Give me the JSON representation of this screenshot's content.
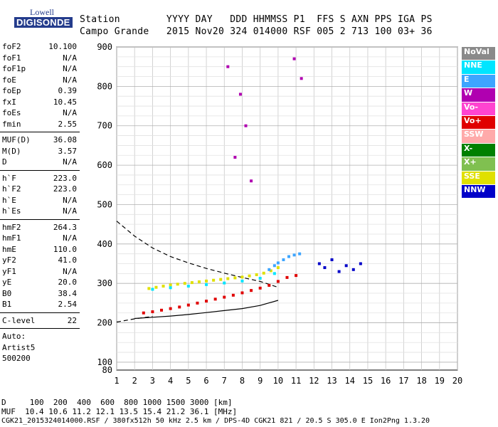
{
  "header": {
    "labels": "Station        YYYY DAY   DDD HHMMSS P1  FFS S AXN PPS IGA PS",
    "values": "Campo Grande   2015 Nov20 324 014000 RSF 005 2 713 100 03+ 36"
  },
  "logo": {
    "line1": "Lowell",
    "line2": "DIGISONDE"
  },
  "params": [
    {
      "k": "foF2",
      "v": "10.100"
    },
    {
      "k": "foF1",
      "v": "N/A"
    },
    {
      "k": "foF1p",
      "v": "N/A"
    },
    {
      "k": "foE",
      "v": "N/A"
    },
    {
      "k": "foEp",
      "v": "0.39"
    },
    {
      "k": "fxI",
      "v": "10.45"
    },
    {
      "k": "foEs",
      "v": "N/A"
    },
    {
      "k": "fmin",
      "v": "2.55"
    },
    {
      "k": "MUF(D)",
      "v": "36.08"
    },
    {
      "k": "M(D)",
      "v": "3.57"
    },
    {
      "k": "D",
      "v": "N/A"
    },
    {
      "k": "h`F",
      "v": "223.0"
    },
    {
      "k": "h`F2",
      "v": "223.0"
    },
    {
      "k": "h`E",
      "v": "N/A"
    },
    {
      "k": "h`Es",
      "v": "N/A"
    },
    {
      "k": "hmF2",
      "v": "264.3"
    },
    {
      "k": "hmF1",
      "v": "N/A"
    },
    {
      "k": "hmE",
      "v": "110.0"
    },
    {
      "k": "yF2",
      "v": "41.0"
    },
    {
      "k": "yF1",
      "v": "N/A"
    },
    {
      "k": "yE",
      "v": "20.0"
    },
    {
      "k": "B0",
      "v": "38.4"
    },
    {
      "k": "B1",
      "v": "2.54"
    },
    {
      "k": "C-level",
      "v": "22"
    }
  ],
  "auto": {
    "l1": "Auto:",
    "l2": "Artist5",
    "l3": "500200"
  },
  "legend": [
    {
      "label": "NoVal",
      "color": "#8a8a8a"
    },
    {
      "label": "NNE",
      "color": "#00e5ff"
    },
    {
      "label": "E",
      "color": "#3da5ff"
    },
    {
      "label": "W",
      "color": "#b000b0"
    },
    {
      "label": "Vo-",
      "color": "#ff44d0"
    },
    {
      "label": "Vo+",
      "color": "#e00000"
    },
    {
      "label": "SSW",
      "color": "#ffaaaa"
    },
    {
      "label": "X-",
      "color": "#008000"
    },
    {
      "label": "X+",
      "color": "#80c050"
    },
    {
      "label": "SSE",
      "color": "#e0e000"
    },
    {
      "label": "NNW",
      "color": "#0000c8"
    }
  ],
  "footer": {
    "l1": "D     100  200  400  600  800 1000 1500 3000 [km]",
    "l2": "MUF  10.4 10.6 11.2 12.1 13.5 15.4 21.2 36.1 [MHz]",
    "l3": "CGK21_2015324014000.RSF / 380fx512h 50 kHz 2.5 km / DPS-4D CGK21 821 / 20.5 S 305.0 E Ion2Png 1.3.20"
  },
  "chart_data": {
    "type": "scatter",
    "xlim": [
      1,
      20
    ],
    "ylim": [
      80,
      900
    ],
    "xticks": [
      1,
      2,
      3,
      4,
      5,
      6,
      7,
      8,
      9,
      10,
      11,
      12,
      13,
      14,
      15,
      16,
      17,
      18,
      19,
      20
    ],
    "yticks": [
      100,
      200,
      300,
      400,
      500,
      600,
      700,
      800,
      900
    ],
    "ytick_labels": [
      "100",
      "200",
      "300",
      "400",
      "500",
      "600",
      "700",
      "800",
      "900"
    ],
    "grid": true,
    "legend_position": "right",
    "bottom_label": "80",
    "traces": [
      {
        "name": "SSE",
        "color": "#e0e000",
        "points": [
          [
            2.8,
            287
          ],
          [
            3.2,
            290
          ],
          [
            3.6,
            293
          ],
          [
            4.0,
            296
          ],
          [
            4.4,
            298
          ],
          [
            4.8,
            300
          ],
          [
            5.2,
            302
          ],
          [
            5.6,
            304
          ],
          [
            6.0,
            306
          ],
          [
            6.4,
            308
          ],
          [
            6.8,
            310
          ],
          [
            7.2,
            312
          ],
          [
            7.6,
            314
          ],
          [
            8.0,
            316
          ],
          [
            8.4,
            319
          ],
          [
            8.8,
            322
          ],
          [
            9.2,
            326
          ],
          [
            9.6,
            332
          ],
          [
            10.0,
            340
          ]
        ]
      },
      {
        "name": "NNE",
        "color": "#00e5ff",
        "points": [
          [
            3.0,
            285
          ],
          [
            4.0,
            289
          ],
          [
            5.0,
            293
          ],
          [
            6.0,
            297
          ],
          [
            7.0,
            301
          ],
          [
            8.0,
            306
          ],
          [
            9.0,
            313
          ],
          [
            9.8,
            325
          ]
        ]
      },
      {
        "name": "Vo+",
        "color": "#e00000",
        "points": [
          [
            2.5,
            225
          ],
          [
            3.0,
            228
          ],
          [
            3.5,
            232
          ],
          [
            4.0,
            236
          ],
          [
            4.5,
            240
          ],
          [
            5.0,
            245
          ],
          [
            5.5,
            250
          ],
          [
            6.0,
            255
          ],
          [
            6.5,
            260
          ],
          [
            7.0,
            265
          ],
          [
            7.5,
            270
          ],
          [
            8.0,
            276
          ],
          [
            8.5,
            282
          ],
          [
            9.0,
            288
          ],
          [
            9.5,
            295
          ],
          [
            10.0,
            305
          ],
          [
            10.5,
            315
          ],
          [
            11.0,
            320
          ]
        ]
      },
      {
        "name": "E",
        "color": "#3da5ff",
        "points": [
          [
            9.5,
            335
          ],
          [
            9.8,
            345
          ],
          [
            10.0,
            352
          ],
          [
            10.3,
            360
          ],
          [
            10.6,
            368
          ],
          [
            10.9,
            372
          ],
          [
            11.2,
            375
          ]
        ]
      },
      {
        "name": "NNW",
        "color": "#0000c8",
        "points": [
          [
            12.3,
            350
          ],
          [
            12.6,
            340
          ],
          [
            13.0,
            360
          ],
          [
            13.4,
            330
          ],
          [
            13.8,
            345
          ],
          [
            14.2,
            335
          ],
          [
            14.6,
            350
          ]
        ]
      },
      {
        "name": "W",
        "color": "#b000b0",
        "points": [
          [
            7.2,
            850
          ],
          [
            7.9,
            780
          ],
          [
            8.2,
            700
          ],
          [
            7.6,
            620
          ],
          [
            8.5,
            560
          ],
          [
            10.9,
            870
          ],
          [
            11.3,
            820
          ]
        ]
      }
    ],
    "curves": [
      {
        "name": "virtual-height-dashed",
        "style": "dashed",
        "points": [
          [
            1,
            458
          ],
          [
            2,
            420
          ],
          [
            3,
            390
          ],
          [
            4,
            368
          ],
          [
            5,
            352
          ],
          [
            6,
            338
          ],
          [
            7,
            326
          ],
          [
            8,
            315
          ],
          [
            9,
            305
          ],
          [
            10,
            290
          ]
        ]
      },
      {
        "name": "virtual-height-solid",
        "style": "solid",
        "points": [
          [
            2,
            211
          ],
          [
            3,
            214
          ],
          [
            4,
            217
          ],
          [
            5,
            221
          ],
          [
            6,
            226
          ],
          [
            7,
            231
          ],
          [
            8,
            236
          ],
          [
            9,
            244
          ],
          [
            10,
            257
          ]
        ]
      },
      {
        "name": "low-dashed",
        "style": "dashed",
        "points": [
          [
            1,
            202
          ],
          [
            2,
            210
          ],
          [
            3,
            216
          ]
        ]
      }
    ]
  }
}
